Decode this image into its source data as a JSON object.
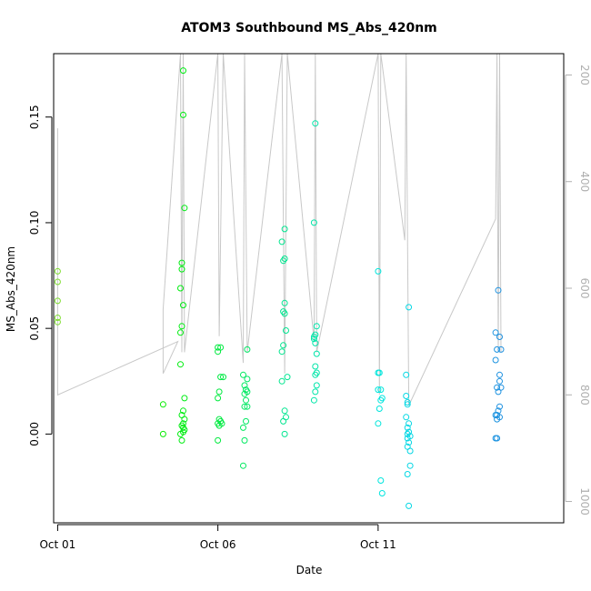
{
  "chart_data": {
    "type": "scatter",
    "title": "ATOM3 Southbound MS_Abs_420nm",
    "xlabel": "Date",
    "ylabel": "MS_Abs_420nm",
    "xlim": [
      "2016-09-30T21:00",
      "2016-10-16T19:00"
    ],
    "ylim": [
      -0.042,
      0.18
    ],
    "x_ticks": [
      {
        "date": "2016-10-01T00:00",
        "label": "Oct 01"
      },
      {
        "date": "2016-10-06T00:00",
        "label": "Oct 06"
      },
      {
        "date": "2016-10-11T00:00",
        "label": "Oct 11"
      }
    ],
    "y_ticks": [
      0.0,
      0.05,
      0.1,
      0.15
    ],
    "y_tick_labels": [
      "0.00",
      "0.05",
      "0.10",
      "0.15"
    ],
    "right_axis": {
      "label": "",
      "lim": [
        1040,
        160
      ],
      "ticks": [
        200,
        400,
        600,
        800,
        1000
      ],
      "tick_labels": [
        "200",
        "400",
        "600",
        "800",
        "1000"
      ],
      "color": "#b0b0b0"
    },
    "grid": false,
    "point_color_scale": [
      "#7fdd30",
      "#00ee00",
      "#00e68c",
      "#00e5e5",
      "#1e90e0"
    ],
    "series": [
      {
        "points": [
          [
            "2016-10-01T00:00",
            0.077
          ],
          [
            "2016-10-01T00:00",
            0.072
          ],
          [
            "2016-10-01T00:00",
            0.063
          ],
          [
            "2016-10-01T00:00",
            0.055
          ],
          [
            "2016-10-01T00:00",
            0.053
          ],
          [
            "2016-10-04T07:00",
            0.014
          ],
          [
            "2016-10-04T07:00",
            0.0
          ],
          [
            "2016-10-04T22:00",
            0.172
          ],
          [
            "2016-10-04T22:00",
            0.151
          ],
          [
            "2016-10-04T23:00",
            0.107
          ],
          [
            "2016-10-04T21:00",
            0.081
          ],
          [
            "2016-10-04T21:00",
            0.078
          ],
          [
            "2016-10-04T20:00",
            0.069
          ],
          [
            "2016-10-04T22:00",
            0.061
          ],
          [
            "2016-10-04T21:00",
            0.051
          ],
          [
            "2016-10-04T20:00",
            0.048
          ],
          [
            "2016-10-04T20:00",
            0.033
          ],
          [
            "2016-10-04T23:00",
            0.017
          ],
          [
            "2016-10-04T22:00",
            0.011
          ],
          [
            "2016-10-04T21:00",
            0.009
          ],
          [
            "2016-10-04T23:00",
            0.007
          ],
          [
            "2016-10-04T22:00",
            0.005
          ],
          [
            "2016-10-04T21:00",
            0.004
          ],
          [
            "2016-10-04T22:00",
            0.003
          ],
          [
            "2016-10-04T23:00",
            0.002
          ],
          [
            "2016-10-04T22:00",
            0.001
          ],
          [
            "2016-10-04T20:00",
            0.0
          ],
          [
            "2016-10-04T21:00",
            -0.003
          ],
          [
            "2016-10-06T00:00",
            0.041
          ],
          [
            "2016-10-06T02:00",
            0.041
          ],
          [
            "2016-10-06T00:00",
            0.039
          ],
          [
            "2016-10-06T02:00",
            0.027
          ],
          [
            "2016-10-06T04:00",
            0.027
          ],
          [
            "2016-10-06T01:00",
            0.02
          ],
          [
            "2016-10-06T00:00",
            0.017
          ],
          [
            "2016-10-06T01:00",
            0.007
          ],
          [
            "2016-10-06T02:00",
            0.006
          ],
          [
            "2016-10-06T00:00",
            0.005
          ],
          [
            "2016-10-06T03:00",
            0.005
          ],
          [
            "2016-10-06T01:00",
            0.004
          ],
          [
            "2016-10-06T00:00",
            -0.003
          ],
          [
            "2016-10-06T22:00",
            0.04
          ],
          [
            "2016-10-06T19:00",
            0.028
          ],
          [
            "2016-10-06T22:00",
            0.026
          ],
          [
            "2016-10-06T20:00",
            0.023
          ],
          [
            "2016-10-06T21:00",
            0.021
          ],
          [
            "2016-10-06T22:00",
            0.02
          ],
          [
            "2016-10-06T20:00",
            0.019
          ],
          [
            "2016-10-06T21:00",
            0.016
          ],
          [
            "2016-10-06T20:00",
            0.013
          ],
          [
            "2016-10-06T22:00",
            0.013
          ],
          [
            "2016-10-06T21:00",
            0.006
          ],
          [
            "2016-10-06T19:00",
            0.003
          ],
          [
            "2016-10-06T20:00",
            -0.003
          ],
          [
            "2016-10-06T19:00",
            -0.015
          ]
        ]
      },
      {
        "points": [
          [
            "2016-10-08T02:00",
            0.097
          ],
          [
            "2016-10-08T00:00",
            0.091
          ],
          [
            "2016-10-08T02:00",
            0.083
          ],
          [
            "2016-10-08T01:00",
            0.082
          ],
          [
            "2016-10-08T02:00",
            0.062
          ],
          [
            "2016-10-08T01:00",
            0.058
          ],
          [
            "2016-10-08T02:00",
            0.057
          ],
          [
            "2016-10-08T03:00",
            0.049
          ],
          [
            "2016-10-08T01:00",
            0.042
          ],
          [
            "2016-10-08T00:00",
            0.039
          ],
          [
            "2016-10-08T04:00",
            0.027
          ],
          [
            "2016-10-08T00:00",
            0.025
          ],
          [
            "2016-10-08T02:00",
            0.011
          ],
          [
            "2016-10-08T03:00",
            0.008
          ],
          [
            "2016-10-08T01:00",
            0.006
          ],
          [
            "2016-10-08T02:00",
            0.0
          ],
          [
            "2016-10-09T01:00",
            0.147
          ],
          [
            "2016-10-09T00:00",
            0.1
          ],
          [
            "2016-10-09T02:00",
            0.051
          ],
          [
            "2016-10-09T01:00",
            0.047
          ],
          [
            "2016-10-09T00:00",
            0.046
          ],
          [
            "2016-10-09T00:00",
            0.045
          ],
          [
            "2016-10-09T01:00",
            0.043
          ],
          [
            "2016-10-09T02:00",
            0.038
          ],
          [
            "2016-10-09T01:00",
            0.032
          ],
          [
            "2016-10-09T02:00",
            0.029
          ],
          [
            "2016-10-09T01:00",
            0.028
          ],
          [
            "2016-10-09T02:00",
            0.023
          ],
          [
            "2016-10-09T01:00",
            0.02
          ],
          [
            "2016-10-09T00:00",
            0.016
          ]
        ]
      },
      {
        "points": [
          [
            "2016-10-11T00:00",
            0.077
          ],
          [
            "2016-10-11T00:00",
            0.029
          ],
          [
            "2016-10-11T01:00",
            0.029
          ],
          [
            "2016-10-11T00:00",
            0.021
          ],
          [
            "2016-10-11T02:00",
            0.021
          ],
          [
            "2016-10-11T03:00",
            0.017
          ],
          [
            "2016-10-11T02:00",
            0.016
          ],
          [
            "2016-10-11T01:00",
            0.012
          ],
          [
            "2016-10-11T00:00",
            0.005
          ],
          [
            "2016-10-11T02:00",
            -0.022
          ],
          [
            "2016-10-11T03:00",
            -0.028
          ],
          [
            "2016-10-11T23:00",
            0.06
          ],
          [
            "2016-10-11T21:00",
            0.028
          ],
          [
            "2016-10-11T21:00",
            0.018
          ],
          [
            "2016-10-11T22:00",
            0.015
          ],
          [
            "2016-10-11T22:00",
            0.014
          ],
          [
            "2016-10-11T21:00",
            0.008
          ],
          [
            "2016-10-11T23:00",
            0.005
          ],
          [
            "2016-10-11T22:00",
            0.003
          ],
          [
            "2016-10-11T23:00",
            0.001
          ],
          [
            "2016-10-11T22:00",
            0.0
          ],
          [
            "2016-10-12T00:00",
            -0.001
          ],
          [
            "2016-10-11T22:00",
            -0.002
          ],
          [
            "2016-10-11T23:00",
            -0.004
          ],
          [
            "2016-10-11T22:00",
            -0.006
          ],
          [
            "2016-10-12T00:00",
            -0.008
          ],
          [
            "2016-10-12T00:00",
            -0.015
          ],
          [
            "2016-10-11T22:00",
            -0.019
          ],
          [
            "2016-10-11T23:00",
            -0.034
          ]
        ]
      },
      {
        "points": [
          [
            "2016-10-14T18:00",
            0.068
          ],
          [
            "2016-10-14T16:00",
            0.048
          ],
          [
            "2016-10-14T19:00",
            0.046
          ],
          [
            "2016-10-14T17:00",
            0.04
          ],
          [
            "2016-10-14T20:00",
            0.04
          ],
          [
            "2016-10-14T16:00",
            0.035
          ],
          [
            "2016-10-14T19:00",
            0.028
          ],
          [
            "2016-10-14T19:00",
            0.025
          ],
          [
            "2016-10-14T17:00",
            0.022
          ],
          [
            "2016-10-14T20:00",
            0.022
          ],
          [
            "2016-10-14T18:00",
            0.02
          ],
          [
            "2016-10-14T19:00",
            0.013
          ],
          [
            "2016-10-14T18:00",
            0.011
          ],
          [
            "2016-10-14T16:00",
            0.009
          ],
          [
            "2016-10-14T17:00",
            0.009
          ],
          [
            "2016-10-14T19:00",
            0.008
          ],
          [
            "2016-10-14T17:00",
            0.007
          ],
          [
            "2016-10-14T16:00",
            -0.002
          ],
          [
            "2016-10-14T17:00",
            -0.002
          ]
        ]
      }
    ],
    "depth_line": {
      "axis": "right",
      "color": "#c8c8c8",
      "points": [
        [
          "2016-10-01T00:00",
          800
        ],
        [
          "2016-10-01T00:00",
          350
        ],
        [
          "2016-10-01T00:00",
          300
        ],
        [
          "2016-10-01T00:00",
          800
        ],
        [
          "2016-10-04T18:00",
          700
        ],
        [
          "2016-10-04T07:00",
          760
        ],
        [
          "2016-10-04T07:00",
          640
        ],
        [
          "2016-10-04T20:00",
          160
        ],
        [
          "2016-10-04T21:00",
          720
        ],
        [
          "2016-10-04T22:00",
          160
        ],
        [
          "2016-10-04T23:00",
          720
        ],
        [
          "2016-10-06T00:00",
          160
        ],
        [
          "2016-10-06T01:00",
          690
        ],
        [
          "2016-10-06T04:00",
          160
        ],
        [
          "2016-10-06T19:00",
          740
        ],
        [
          "2016-10-06T20:00",
          160
        ],
        [
          "2016-10-06T22:00",
          720
        ],
        [
          "2016-10-08T00:00",
          160
        ],
        [
          "2016-10-08T02:00",
          760
        ],
        [
          "2016-10-08T04:00",
          160
        ],
        [
          "2016-10-09T00:00",
          700
        ],
        [
          "2016-10-09T01:00",
          160
        ],
        [
          "2016-10-09T02:00",
          720
        ],
        [
          "2016-10-11T00:00",
          160
        ],
        [
          "2016-10-11T01:00",
          800
        ],
        [
          "2016-10-11T02:00",
          160
        ],
        [
          "2016-10-11T20:00",
          510
        ],
        [
          "2016-10-11T21:00",
          160
        ],
        [
          "2016-10-11T23:00",
          820
        ],
        [
          "2016-10-14T16:00",
          470
        ],
        [
          "2016-10-14T17:00",
          160
        ],
        [
          "2016-10-14T18:00",
          720
        ],
        [
          "2016-10-14T19:00",
          160
        ],
        [
          "2016-10-14T20:00",
          720
        ]
      ]
    }
  }
}
